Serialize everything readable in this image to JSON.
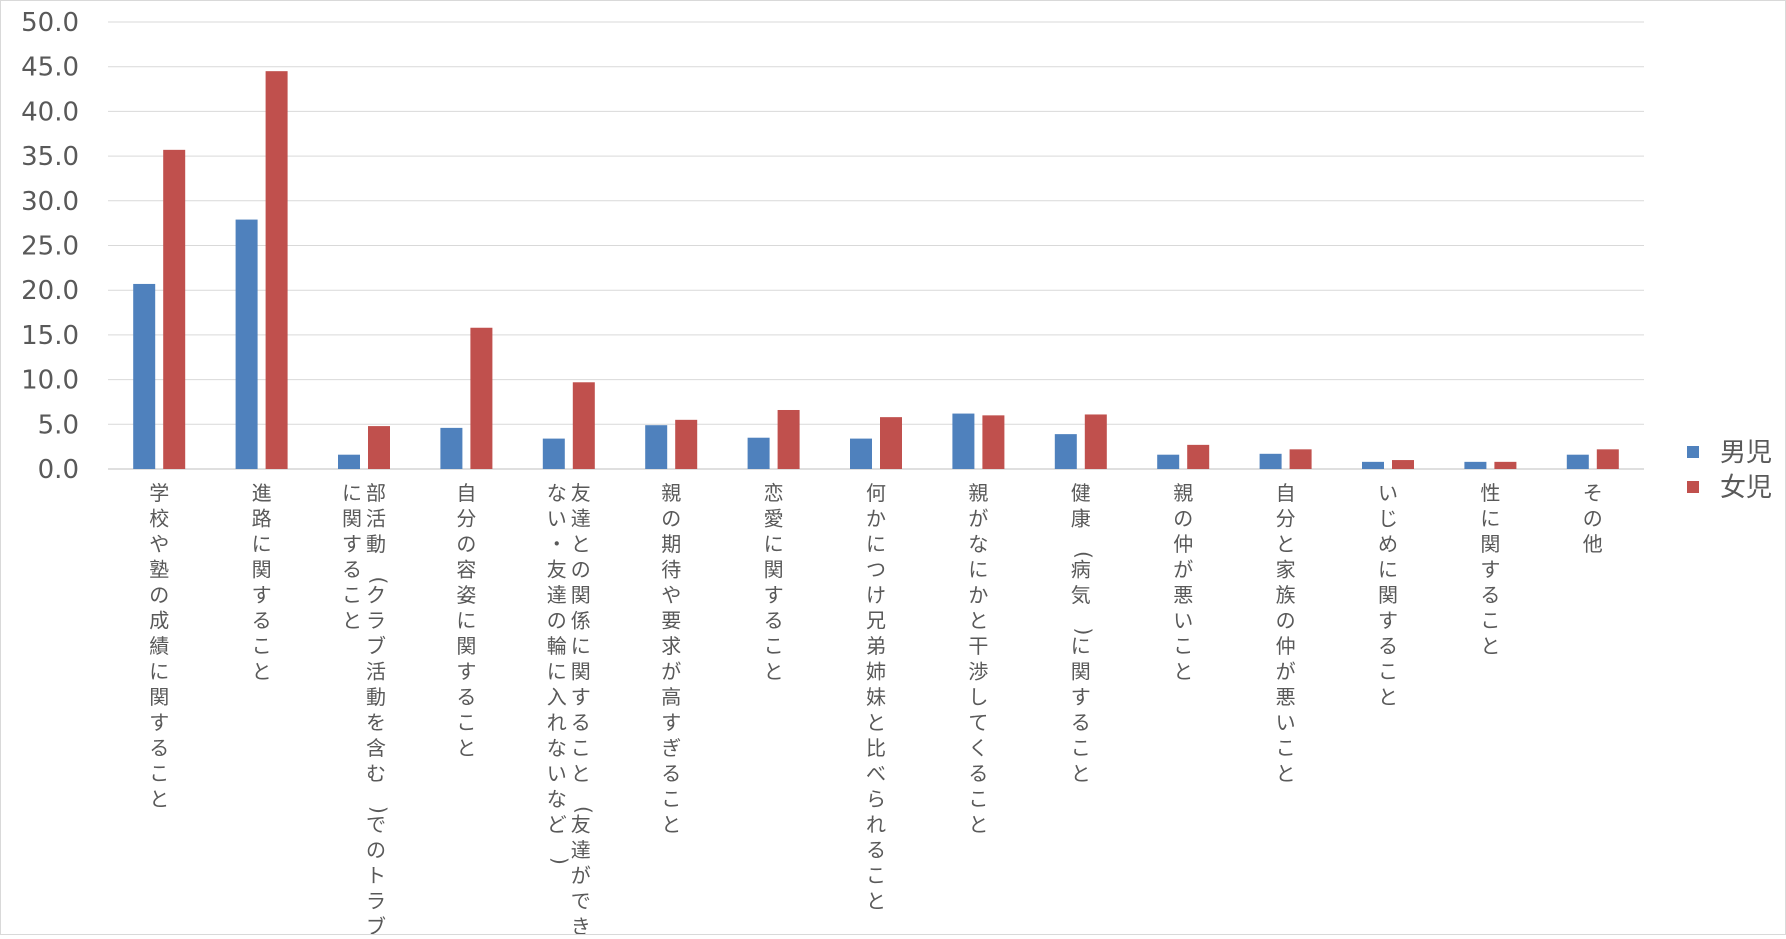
{
  "chart_data": {
    "type": "bar",
    "ylim": [
      0,
      50
    ],
    "yticks": [
      "0.0",
      "5.0",
      "10.0",
      "15.0",
      "20.0",
      "25.0",
      "30.0",
      "35.0",
      "40.0",
      "45.0",
      "50.0"
    ],
    "grid": true,
    "legend_position": "right",
    "categories": [
      "学校や塾の成績に関すること",
      "進路に関すること",
      "部活動(クラブ活動を含む)でのトラブルに関すること",
      "自分の容姿に関すること",
      "友達との関係に関すること(友達ができない・友達の輪に入れないなど)",
      "親の期待や要求が高すぎること",
      "恋愛に関すること",
      "何かにつけ兄弟姉妹と比べられること",
      "親がなにかと干渉してくること",
      "健康(病気)に関すること",
      "親の仲が悪いこと",
      "自分と家族の仲が悪いこと",
      "いじめに関すること",
      "性に関すること",
      "その他"
    ],
    "category_lines": [
      [
        "学校や塾の成績に関すること"
      ],
      [
        "進路に関すること"
      ],
      [
        "部活動(クラブ活動を含む)でのトラブル",
        "に関すること"
      ],
      [
        "自分の容姿に関すること"
      ],
      [
        "友達との関係に関すること(友達ができ",
        "ない・友達の輪に入れないなど)"
      ],
      [
        "親の期待や要求が高すぎること"
      ],
      [
        "恋愛に関すること"
      ],
      [
        "何かにつけ兄弟姉妹と比べられること"
      ],
      [
        "親がなにかと干渉してくること"
      ],
      [
        "健康(病気)に関すること"
      ],
      [
        "親の仲が悪いこと"
      ],
      [
        "自分と家族の仲が悪いこと"
      ],
      [
        "いじめに関すること"
      ],
      [
        "性に関すること"
      ],
      [
        "その他"
      ]
    ],
    "series": [
      {
        "name": "男児",
        "color": "#4F81BD",
        "values": [
          20.7,
          27.9,
          1.6,
          4.6,
          3.4,
          4.9,
          3.5,
          3.4,
          6.2,
          3.9,
          1.6,
          1.7,
          0.8,
          0.8,
          1.6
        ]
      },
      {
        "name": "女児",
        "color": "#C0504D",
        "values": [
          35.7,
          44.5,
          4.8,
          15.8,
          9.7,
          5.5,
          6.6,
          5.8,
          6.0,
          6.1,
          2.7,
          2.2,
          1.0,
          0.8,
          2.2
        ]
      }
    ]
  }
}
